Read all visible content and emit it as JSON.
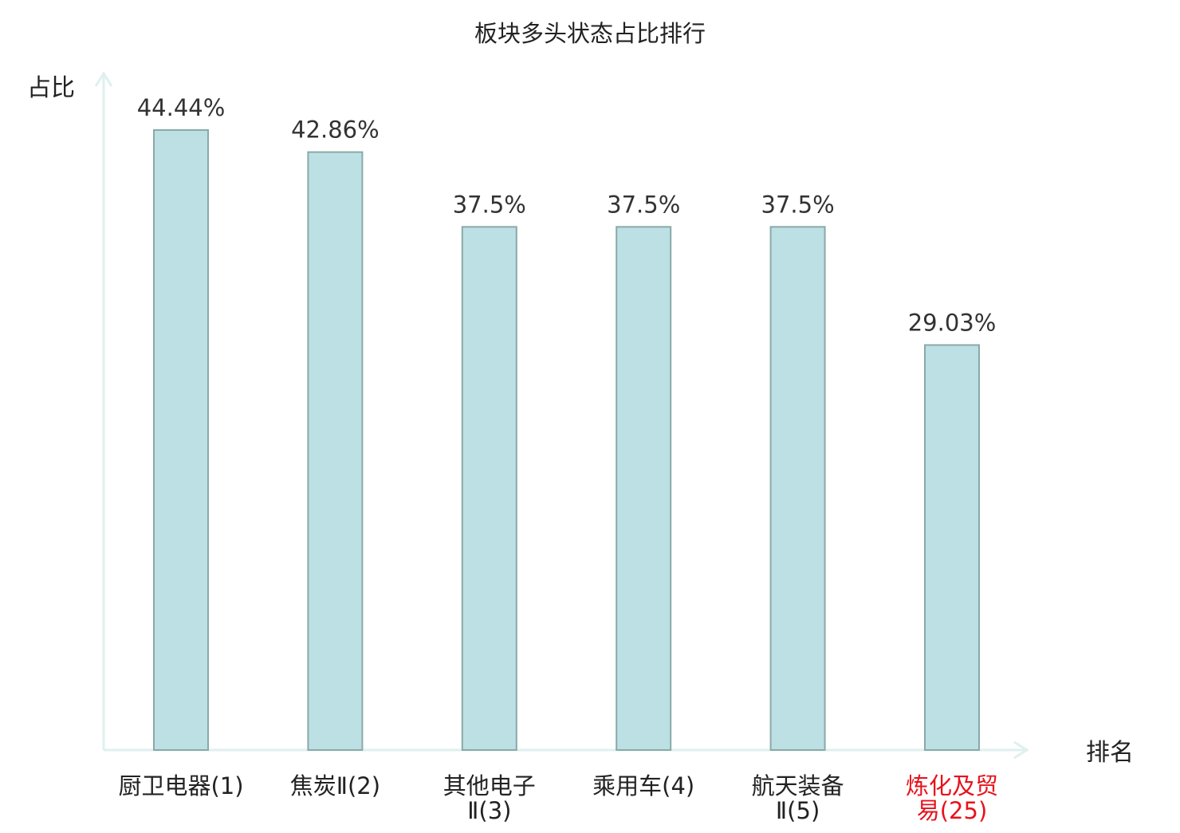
{
  "chart_data": {
    "type": "bar",
    "title": "板块多头状态占比排行",
    "xlabel": "排名",
    "ylabel": "占比",
    "categories": [
      {
        "line1": "厨卫电器(1)",
        "line2": ""
      },
      {
        "line1": "焦炭Ⅱ(2)",
        "line2": ""
      },
      {
        "line1": "其他电子",
        "line2": "Ⅱ(3)"
      },
      {
        "line1": "乘用车(4)",
        "line2": ""
      },
      {
        "line1": "航天装备",
        "line2": "Ⅱ(5)"
      },
      {
        "line1": "炼化及贸",
        "line2": "易(25)"
      }
    ],
    "values": [
      44.44,
      42.86,
      37.5,
      37.5,
      37.5,
      29.03
    ],
    "value_labels": [
      "44.44%",
      "42.86%",
      "37.5%",
      "37.5%",
      "37.5%",
      "29.03%"
    ],
    "highlight_index": 5,
    "ylim": [
      0,
      48.5
    ],
    "grid": false,
    "colors": {
      "bar_fill": "#bce0e3",
      "bar_stroke": "#8aa9a8",
      "axis": "#dff0ee",
      "text": "#222222",
      "value_text": "#333333",
      "highlight_text": "#e8121c"
    }
  }
}
